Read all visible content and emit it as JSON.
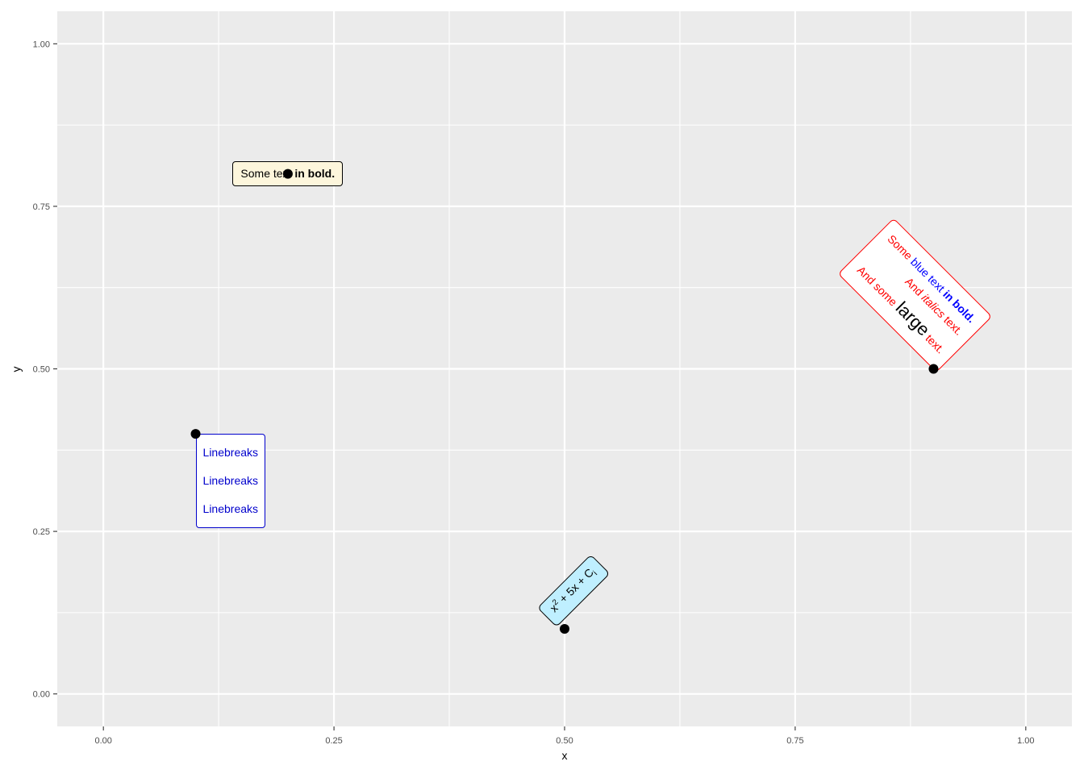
{
  "chart_data": {
    "type": "scatter",
    "title": "",
    "xlabel": "x",
    "ylabel": "y",
    "xlim": [
      -0.05,
      1.05
    ],
    "ylim": [
      -0.05,
      1.05
    ],
    "x_ticks": [
      "0.00",
      "0.25",
      "0.50",
      "0.75",
      "1.00"
    ],
    "y_ticks": [
      "0.00",
      "0.25",
      "0.50",
      "0.75",
      "1.00"
    ],
    "grid": true,
    "panel_background": "#ebebeb",
    "points": [
      {
        "x": 0.2,
        "y": 0.8
      },
      {
        "x": 0.1,
        "y": 0.4
      },
      {
        "x": 0.5,
        "y": 0.1
      },
      {
        "x": 0.9,
        "y": 0.5
      }
    ],
    "labels": [
      {
        "id": "a",
        "parts": [
          {
            "text": "Some text ",
            "style": "normal"
          },
          {
            "text": "in bold.",
            "style": "bold"
          }
        ],
        "fill": "#fdf6dc",
        "text_color": "#000000",
        "angle": 0
      },
      {
        "id": "b",
        "lines": [
          "Linebreaks",
          "Linebreaks",
          "Linebreaks"
        ],
        "fill": "#ffffff",
        "text_color": "#0000cc",
        "angle": 0
      },
      {
        "id": "c",
        "base": "x",
        "sup": "2",
        "mid": " + 5x + C",
        "sub": "i",
        "fill": "#bfefff",
        "text_color": "#000000",
        "angle": 45
      },
      {
        "id": "d",
        "line1": [
          {
            "text": "Some ",
            "style": "normal"
          },
          {
            "text": "blue",
            "style": "blue"
          },
          {
            "text": " text ",
            "style": "blue"
          },
          {
            "text": "in bold.",
            "style": "bluebold"
          }
        ],
        "line2": [
          {
            "text": "And ",
            "style": "normal"
          },
          {
            "text": "italics",
            "style": "italic"
          },
          {
            "text": " text.",
            "style": "normal"
          }
        ],
        "line3": [
          {
            "text": "And some ",
            "style": "normal"
          },
          {
            "text": "large",
            "style": "large"
          },
          {
            "text": " text.",
            "style": "normal"
          }
        ],
        "fill": "#ffffff",
        "text_color": "#ff0000",
        "border_color": "#ff0000",
        "angle": -45
      }
    ]
  }
}
